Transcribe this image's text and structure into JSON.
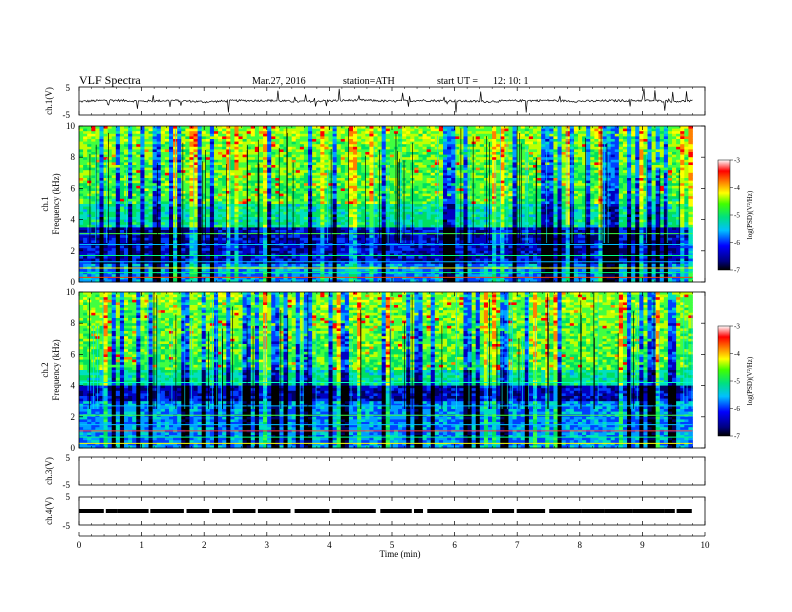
{
  "header": {
    "title": "VLF  Spectra",
    "date": "Mar.27, 2016",
    "station": "station=ATH",
    "start_label": "start  UT  =",
    "start_time": "12: 10: 1"
  },
  "colors": {
    "spectro_low": "#000080",
    "spectro_mid": "#00e060",
    "spectro_high": "#ff0000",
    "trace": "#000000"
  },
  "chart_data": [
    {
      "type": "line",
      "name": "ch1-waveform",
      "ylabel": "ch.1(V)",
      "ylim": [
        -5,
        5
      ],
      "yticks": [
        "5",
        "-5"
      ],
      "xlim": [
        0,
        10
      ],
      "x": [
        0,
        0.5,
        1,
        1.5,
        2,
        2.5,
        3,
        3.5,
        4,
        4.5,
        5,
        5.5,
        6,
        6.5,
        7,
        7.5,
        8,
        8.5,
        9,
        9.5,
        9.8
      ],
      "y": [
        -0.2,
        0.3,
        -0.1,
        0.2,
        -0.3,
        0.1,
        0.2,
        -0.2,
        0.1,
        0.3,
        -0.1,
        0.2,
        0.0,
        -0.2,
        0.1,
        0.2,
        -0.1,
        0.1,
        0.2,
        -0.1,
        0.0
      ]
    },
    {
      "type": "heatmap",
      "name": "ch1-spectrogram",
      "ylabel_channel": "ch.1",
      "ylabel": "Frequency  (kHz)",
      "ylim": [
        0,
        10
      ],
      "yticks": [
        "0",
        "2",
        "4",
        "6",
        "8",
        "10"
      ],
      "xlim": [
        0,
        9.8
      ],
      "colorbar_label": "log(PSD)(V²/Hz)",
      "colorbar_range": [
        -7,
        -3
      ],
      "colorbar_ticks": [
        "-3",
        "-4",
        "-5",
        "-6",
        "-7"
      ],
      "quiet_band_khz": [
        1.2,
        3.5
      ]
    },
    {
      "type": "heatmap",
      "name": "ch2-spectrogram",
      "ylabel_channel": "ch.2",
      "ylabel": "Frequency  (kHz)",
      "ylim": [
        0,
        10
      ],
      "yticks": [
        "0",
        "2",
        "4",
        "6",
        "8",
        "10"
      ],
      "xlim": [
        0,
        9.8
      ],
      "colorbar_label": "log(PSD)(V²/Hz)",
      "colorbar_range": [
        -7,
        -3
      ],
      "colorbar_ticks": [
        "-3",
        "-4",
        "-5",
        "-6",
        "-7"
      ],
      "quiet_band_khz": [
        3.0,
        4.0
      ]
    },
    {
      "type": "line",
      "name": "ch3-waveform",
      "ylabel": "ch.3(V)",
      "ylim": [
        -5,
        5
      ],
      "yticks": [
        "5",
        "-5"
      ],
      "xlim": [
        0,
        10
      ],
      "x": [],
      "y": []
    },
    {
      "type": "line",
      "name": "ch4-waveform",
      "ylabel": "ch.4(V)",
      "ylim": [
        -5,
        5
      ],
      "yticks": [
        "5",
        "-5"
      ],
      "xlim": [
        0,
        10
      ],
      "x": [
        0,
        9.8
      ],
      "y": [
        0,
        0
      ]
    }
  ],
  "xaxis": {
    "label": "Time  (min)",
    "ticks": [
      "0",
      "1",
      "2",
      "3",
      "4",
      "5",
      "6",
      "7",
      "8",
      "9",
      "10"
    ],
    "range": [
      0,
      10
    ]
  }
}
